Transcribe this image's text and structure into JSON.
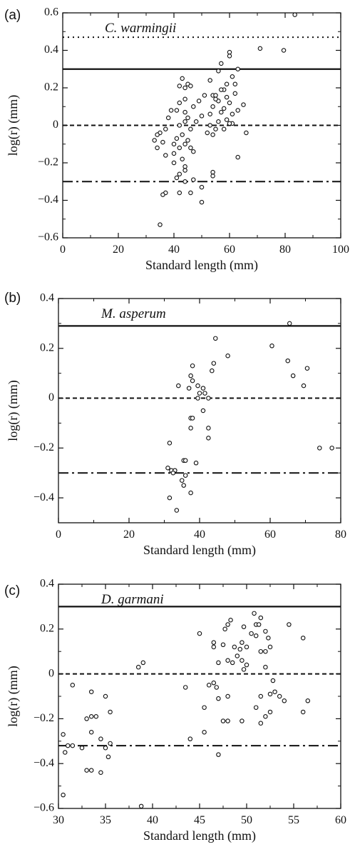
{
  "chart_data": [
    {
      "type": "scatter",
      "panel_label": "(a)",
      "species": "C. warmingii",
      "xlabel": "Standard length (mm)",
      "ylabel": "log(r) (mm)",
      "xlim": [
        0,
        100
      ],
      "ylim": [
        -0.6,
        0.6
      ],
      "x_ticks": [
        "0",
        "20",
        "40",
        "60",
        "80",
        "100"
      ],
      "y_ticks": [
        "-0.6",
        "-0.4",
        "-0.2",
        "0",
        "0.2",
        "0.4",
        "0.6"
      ],
      "reference_lines": [
        {
          "style": "dotted",
          "y": 0.47
        },
        {
          "style": "solid",
          "y": 0.3
        },
        {
          "style": "dashed",
          "y": 0.0
        },
        {
          "style": "dashdot",
          "y": -0.3
        }
      ],
      "points": [
        [
          83.5,
          0.59
        ],
        [
          71,
          0.41
        ],
        [
          79.5,
          0.4
        ],
        [
          60,
          0.39
        ],
        [
          60,
          0.37
        ],
        [
          57,
          0.33
        ],
        [
          56,
          0.29
        ],
        [
          63,
          0.3
        ],
        [
          61,
          0.26
        ],
        [
          62,
          0.22
        ],
        [
          59,
          0.22
        ],
        [
          58,
          0.19
        ],
        [
          57,
          0.19
        ],
        [
          54,
          0.16
        ],
        [
          55,
          0.16
        ],
        [
          56,
          0.13
        ],
        [
          54,
          0.1
        ],
        [
          55,
          0.14
        ],
        [
          60,
          0.12
        ],
        [
          63,
          0.08
        ],
        [
          65,
          0.11
        ],
        [
          61,
          0.06
        ],
        [
          59,
          0.03
        ],
        [
          61,
          0.01
        ],
        [
          57,
          0.07
        ],
        [
          56,
          0.02
        ],
        [
          53,
          0.06
        ],
        [
          50,
          0.05
        ],
        [
          48,
          0.02
        ],
        [
          53,
          0.0
        ],
        [
          55,
          -0.02
        ],
        [
          52,
          -0.04
        ],
        [
          54,
          -0.05
        ],
        [
          58,
          -0.02
        ],
        [
          60,
          0.01
        ],
        [
          66,
          -0.04
        ],
        [
          53,
          0.24
        ],
        [
          51,
          0.16
        ],
        [
          49,
          0.13
        ],
        [
          47,
          0.1
        ],
        [
          45,
          0.22
        ],
        [
          44,
          0.2
        ],
        [
          43,
          0.25
        ],
        [
          42,
          0.21
        ],
        [
          46,
          0.21
        ],
        [
          44,
          0.14
        ],
        [
          42,
          0.12
        ],
        [
          41,
          0.08
        ],
        [
          44,
          0.07
        ],
        [
          45,
          0.04
        ],
        [
          44,
          0.02
        ],
        [
          42,
          0.0
        ],
        [
          46,
          -0.02
        ],
        [
          43,
          -0.05
        ],
        [
          45,
          -0.08
        ],
        [
          44,
          -0.1
        ],
        [
          46,
          -0.12
        ],
        [
          41,
          -0.07
        ],
        [
          40,
          -0.1
        ],
        [
          42,
          -0.12
        ],
        [
          47,
          -0.14
        ],
        [
          43,
          -0.18
        ],
        [
          40,
          -0.2
        ],
        [
          44,
          -0.22
        ],
        [
          42,
          -0.26
        ],
        [
          41,
          -0.28
        ],
        [
          44,
          -0.3
        ],
        [
          39,
          0.08
        ],
        [
          38,
          0.04
        ],
        [
          37,
          -0.02
        ],
        [
          35,
          -0.04
        ],
        [
          34,
          -0.05
        ],
        [
          36,
          -0.09
        ],
        [
          33,
          -0.08
        ],
        [
          34,
          -0.12
        ],
        [
          37,
          -0.16
        ],
        [
          40,
          -0.15
        ],
        [
          47,
          -0.29
        ],
        [
          50,
          -0.33
        ],
        [
          46,
          -0.36
        ],
        [
          37,
          -0.36
        ],
        [
          36,
          -0.37
        ],
        [
          42,
          -0.36
        ],
        [
          50,
          -0.41
        ],
        [
          35,
          -0.53
        ],
        [
          63,
          -0.17
        ],
        [
          54,
          -0.25
        ],
        [
          54,
          -0.27
        ],
        [
          59,
          0.15
        ],
        [
          44,
          -0.24
        ],
        [
          62,
          0.17
        ],
        [
          58,
          0.09
        ]
      ]
    },
    {
      "type": "scatter",
      "panel_label": "(b)",
      "species": "M. asperum",
      "xlabel": "Standard length (mm)",
      "ylabel": "log(r) (mm)",
      "xlim": [
        0,
        80
      ],
      "ylim": [
        -0.5,
        0.4
      ],
      "x_ticks": [
        "0",
        "20",
        "40",
        "60",
        "80"
      ],
      "y_ticks": [
        "-0.4",
        "-0.2",
        "0",
        "0.2",
        "0.4"
      ],
      "reference_lines": [
        {
          "style": "solid",
          "y": 0.29
        },
        {
          "style": "dashed",
          "y": 0.0
        },
        {
          "style": "dashdot",
          "y": -0.3
        }
      ],
      "points": [
        [
          65.5,
          0.3
        ],
        [
          44.5,
          0.24
        ],
        [
          60.5,
          0.21
        ],
        [
          48,
          0.17
        ],
        [
          65,
          0.15
        ],
        [
          44,
          0.14
        ],
        [
          38,
          0.13
        ],
        [
          43.5,
          0.11
        ],
        [
          70.5,
          0.12
        ],
        [
          37.5,
          0.09
        ],
        [
          66.5,
          0.09
        ],
        [
          38,
          0.07
        ],
        [
          69.5,
          0.05
        ],
        [
          37,
          0.04
        ],
        [
          34,
          0.05
        ],
        [
          39.5,
          0.05
        ],
        [
          41,
          0.04
        ],
        [
          40,
          0.02
        ],
        [
          39.5,
          0.0
        ],
        [
          41.5,
          0.02
        ],
        [
          42.5,
          0.0
        ],
        [
          41,
          -0.05
        ],
        [
          37.5,
          -0.08
        ],
        [
          38,
          -0.08
        ],
        [
          42.5,
          -0.12
        ],
        [
          37.5,
          -0.12
        ],
        [
          42.5,
          -0.16
        ],
        [
          31.5,
          -0.18
        ],
        [
          74,
          -0.2
        ],
        [
          77.5,
          -0.2
        ],
        [
          35.5,
          -0.25
        ],
        [
          36,
          -0.25
        ],
        [
          39,
          -0.26
        ],
        [
          31,
          -0.28
        ],
        [
          32,
          -0.29
        ],
        [
          33,
          -0.29
        ],
        [
          32.5,
          -0.3
        ],
        [
          36,
          -0.31
        ],
        [
          35,
          -0.33
        ],
        [
          35.5,
          -0.35
        ],
        [
          37.5,
          -0.38
        ],
        [
          31.5,
          -0.4
        ],
        [
          33.5,
          -0.45
        ]
      ]
    },
    {
      "type": "scatter",
      "panel_label": "(c)",
      "species": "D. garmani",
      "xlabel": "Standard length (mm)",
      "ylabel": "log(r) (mm)",
      "xlim": [
        30,
        60
      ],
      "ylim": [
        -0.6,
        0.4
      ],
      "x_ticks": [
        "30",
        "35",
        "40",
        "45",
        "50",
        "55",
        "60"
      ],
      "y_ticks": [
        "-0.6",
        "-0.4",
        "-0.2",
        "0",
        "0.2",
        "0.4"
      ],
      "reference_lines": [
        {
          "style": "solid",
          "y": 0.3
        },
        {
          "style": "dashed",
          "y": 0.0
        },
        {
          "style": "dashdot",
          "y": -0.32
        }
      ],
      "points": [
        [
          50.8,
          0.27
        ],
        [
          51.5,
          0.25
        ],
        [
          48.3,
          0.24
        ],
        [
          51.0,
          0.22
        ],
        [
          54.5,
          0.22
        ],
        [
          48.0,
          0.22
        ],
        [
          49.7,
          0.21
        ],
        [
          51.3,
          0.22
        ],
        [
          47.7,
          0.2
        ],
        [
          52.0,
          0.19
        ],
        [
          50.5,
          0.18
        ],
        [
          45.0,
          0.18
        ],
        [
          51.0,
          0.17
        ],
        [
          52.3,
          0.16
        ],
        [
          56.0,
          0.16
        ],
        [
          49.5,
          0.14
        ],
        [
          47.5,
          0.13
        ],
        [
          50.0,
          0.12
        ],
        [
          48.7,
          0.12
        ],
        [
          52.5,
          0.12
        ],
        [
          46.5,
          0.12
        ],
        [
          49.3,
          0.11
        ],
        [
          51.5,
          0.1
        ],
        [
          52.0,
          0.1
        ],
        [
          46.5,
          0.14
        ],
        [
          49.0,
          0.08
        ],
        [
          48.0,
          0.06
        ],
        [
          48.5,
          0.05
        ],
        [
          49.5,
          0.06
        ],
        [
          47.0,
          0.05
        ],
        [
          50.0,
          0.04
        ],
        [
          49.7,
          0.02
        ],
        [
          52.0,
          0.03
        ],
        [
          39.0,
          0.05
        ],
        [
          38.5,
          0.03
        ],
        [
          46.5,
          -0.04
        ],
        [
          46.0,
          -0.05
        ],
        [
          43.5,
          -0.06
        ],
        [
          46.8,
          -0.06
        ],
        [
          53.0,
          -0.08
        ],
        [
          52.8,
          -0.03
        ],
        [
          52.5,
          -0.09
        ],
        [
          51.5,
          -0.1
        ],
        [
          53.5,
          -0.1
        ],
        [
          48.0,
          -0.1
        ],
        [
          47.0,
          -0.11
        ],
        [
          54.0,
          -0.12
        ],
        [
          56.5,
          -0.12
        ],
        [
          51.0,
          -0.15
        ],
        [
          45.5,
          -0.15
        ],
        [
          52.5,
          -0.17
        ],
        [
          56.0,
          -0.17
        ],
        [
          52.0,
          -0.19
        ],
        [
          47.5,
          -0.21
        ],
        [
          48.0,
          -0.21
        ],
        [
          49.5,
          -0.21
        ],
        [
          51.5,
          -0.22
        ],
        [
          45.5,
          -0.26
        ],
        [
          44.0,
          -0.29
        ],
        [
          47.0,
          -0.36
        ],
        [
          31.5,
          -0.05
        ],
        [
          33.5,
          -0.08
        ],
        [
          35.0,
          -0.1
        ],
        [
          35.5,
          -0.17
        ],
        [
          33.5,
          -0.19
        ],
        [
          34.0,
          -0.19
        ],
        [
          33.0,
          -0.2
        ],
        [
          30.5,
          -0.27
        ],
        [
          33.5,
          -0.26
        ],
        [
          34.5,
          -0.29
        ],
        [
          35.5,
          -0.31
        ],
        [
          31.0,
          -0.32
        ],
        [
          31.5,
          -0.32
        ],
        [
          32.5,
          -0.33
        ],
        [
          35.0,
          -0.33
        ],
        [
          35.3,
          -0.37
        ],
        [
          30.7,
          -0.35
        ],
        [
          33.0,
          -0.43
        ],
        [
          33.5,
          -0.43
        ],
        [
          34.5,
          -0.44
        ],
        [
          30.5,
          -0.54
        ],
        [
          38.8,
          -0.59
        ]
      ]
    }
  ]
}
